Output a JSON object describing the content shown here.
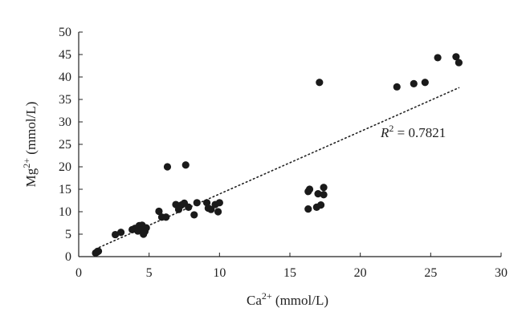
{
  "chart_data": {
    "type": "scatter",
    "title": "",
    "xlabel_base": "Ca",
    "xlabel_sup": "2+",
    "xlabel_unit": " (mmol/L)",
    "ylabel_base": "Mg",
    "ylabel_sup": "2+",
    "ylabel_unit": " (mmol/L)",
    "xlim": [
      0,
      30
    ],
    "ylim": [
      0,
      50
    ],
    "xticks": [
      0,
      5,
      10,
      15,
      20,
      25,
      30
    ],
    "yticks": [
      0,
      5,
      10,
      15,
      20,
      25,
      30,
      35,
      40,
      45,
      50
    ],
    "grid": false,
    "legend": false,
    "marker_color": "#1a1a1a",
    "trendline": {
      "style": "dotted",
      "from": [
        1.2,
        1.7
      ],
      "to": [
        27.0,
        37.6
      ]
    },
    "annotation": {
      "prefix": "R",
      "sup": "2",
      "text": " = 0.7821"
    },
    "points": [
      [
        1.2,
        0.8
      ],
      [
        1.3,
        1.0
      ],
      [
        1.4,
        1.2
      ],
      [
        2.6,
        4.9
      ],
      [
        3.0,
        5.4
      ],
      [
        3.8,
        6.0
      ],
      [
        4.0,
        6.3
      ],
      [
        4.2,
        5.7
      ],
      [
        4.3,
        6.9
      ],
      [
        4.5,
        7.0
      ],
      [
        4.5,
        6.0
      ],
      [
        4.6,
        5.0
      ],
      [
        4.7,
        5.6
      ],
      [
        4.8,
        6.4
      ],
      [
        5.7,
        10.1
      ],
      [
        5.9,
        8.8
      ],
      [
        6.2,
        8.8
      ],
      [
        6.3,
        20.0
      ],
      [
        6.9,
        11.6
      ],
      [
        7.1,
        10.5
      ],
      [
        7.3,
        11.5
      ],
      [
        7.5,
        11.9
      ],
      [
        7.6,
        20.4
      ],
      [
        7.8,
        11.0
      ],
      [
        8.2,
        9.3
      ],
      [
        8.4,
        12.0
      ],
      [
        9.1,
        12.0
      ],
      [
        9.2,
        10.8
      ],
      [
        9.4,
        10.5
      ],
      [
        9.7,
        11.6
      ],
      [
        9.9,
        10.0
      ],
      [
        10.0,
        12.0
      ],
      [
        16.3,
        10.6
      ],
      [
        16.3,
        14.5
      ],
      [
        16.4,
        15.0
      ],
      [
        16.9,
        11.0
      ],
      [
        17.0,
        14.0
      ],
      [
        17.1,
        38.8
      ],
      [
        17.2,
        11.5
      ],
      [
        17.4,
        15.4
      ],
      [
        17.4,
        13.8
      ],
      [
        22.6,
        37.8
      ],
      [
        23.8,
        38.5
      ],
      [
        24.6,
        38.8
      ],
      [
        25.5,
        44.3
      ],
      [
        26.8,
        44.5
      ],
      [
        27.0,
        43.2
      ]
    ]
  }
}
